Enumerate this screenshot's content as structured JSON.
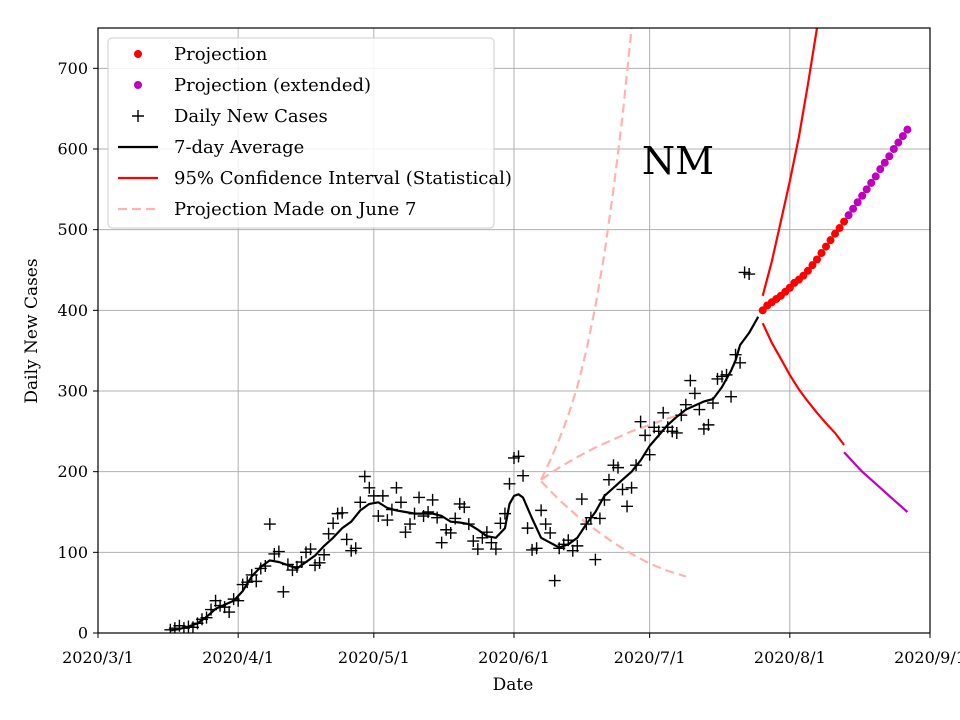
{
  "chart_data": {
    "type": "line",
    "region": "NM",
    "xlabel": "Date",
    "ylabel": "Daily New Cases",
    "xlim": [
      0,
      184
    ],
    "ylim": [
      0,
      750
    ],
    "grid": true,
    "legend_position": "top-left",
    "x_ticks": [
      {
        "x": 0,
        "label": "2020/3/1"
      },
      {
        "x": 31,
        "label": "2020/4/1"
      },
      {
        "x": 61,
        "label": "2020/5/1"
      },
      {
        "x": 92,
        "label": "2020/6/1"
      },
      {
        "x": 122,
        "label": "2020/7/1"
      },
      {
        "x": 153,
        "label": "2020/8/1"
      },
      {
        "x": 184,
        "label": "2020/9/1"
      }
    ],
    "y_ticks": [
      0,
      100,
      200,
      300,
      400,
      500,
      600,
      700
    ],
    "legend": [
      {
        "label": "Projection",
        "kind": "dot",
        "color": "#ff0000"
      },
      {
        "label": "Projection (extended)",
        "kind": "dot",
        "color": "#bf00bf"
      },
      {
        "label": "Daily New Cases",
        "kind": "plus",
        "color": "#000000"
      },
      {
        "label": "7-day Average",
        "kind": "line",
        "color": "#000000"
      },
      {
        "label": "95% Confidence Interval (Statistical)",
        "kind": "line",
        "color": "#ff0000"
      },
      {
        "label": "Projection Made on June 7",
        "kind": "dash",
        "color": "#ffb2b2"
      }
    ],
    "daily_new_cases": [
      [
        16,
        4
      ],
      [
        17,
        6
      ],
      [
        18,
        9
      ],
      [
        19,
        6
      ],
      [
        20,
        8
      ],
      [
        21,
        7
      ],
      [
        22,
        12
      ],
      [
        23,
        17
      ],
      [
        24,
        19
      ],
      [
        25,
        29
      ],
      [
        26,
        40
      ],
      [
        27,
        34
      ],
      [
        28,
        32
      ],
      [
        29,
        26
      ],
      [
        30,
        42
      ],
      [
        31,
        40
      ],
      [
        32,
        60
      ],
      [
        33,
        63
      ],
      [
        34,
        72
      ],
      [
        35,
        64
      ],
      [
        36,
        80
      ],
      [
        37,
        83
      ],
      [
        38,
        135
      ],
      [
        39,
        98
      ],
      [
        40,
        101
      ],
      [
        41,
        51
      ],
      [
        42,
        85
      ],
      [
        43,
        78
      ],
      [
        44,
        82
      ],
      [
        45,
        88
      ],
      [
        46,
        100
      ],
      [
        47,
        104
      ],
      [
        48,
        84
      ],
      [
        49,
        87
      ],
      [
        50,
        97
      ],
      [
        51,
        123
      ],
      [
        52,
        136
      ],
      [
        53,
        148
      ],
      [
        54,
        149
      ],
      [
        55,
        116
      ],
      [
        56,
        102
      ],
      [
        57,
        105
      ],
      [
        58,
        162
      ],
      [
        59,
        194
      ],
      [
        60,
        180
      ],
      [
        61,
        170
      ],
      [
        62,
        145
      ],
      [
        63,
        170
      ],
      [
        64,
        140
      ],
      [
        65,
        153
      ],
      [
        66,
        180
      ],
      [
        67,
        162
      ],
      [
        68,
        125
      ],
      [
        69,
        135
      ],
      [
        70,
        148
      ],
      [
        71,
        168
      ],
      [
        72,
        145
      ],
      [
        73,
        150
      ],
      [
        74,
        165
      ],
      [
        75,
        143
      ],
      [
        76,
        112
      ],
      [
        77,
        128
      ],
      [
        78,
        124
      ],
      [
        79,
        142
      ],
      [
        80,
        160
      ],
      [
        81,
        156
      ],
      [
        82,
        135
      ],
      [
        83,
        114
      ],
      [
        84,
        104
      ],
      [
        85,
        118
      ],
      [
        86,
        125
      ],
      [
        87,
        112
      ],
      [
        88,
        104
      ],
      [
        89,
        136
      ],
      [
        90,
        148
      ],
      [
        91,
        185
      ],
      [
        92,
        217
      ],
      [
        93,
        219
      ],
      [
        94,
        195
      ],
      [
        95,
        130
      ],
      [
        96,
        103
      ],
      [
        97,
        105
      ],
      [
        98,
        152
      ],
      [
        99,
        135
      ],
      [
        100,
        124
      ],
      [
        101,
        65
      ],
      [
        102,
        105
      ],
      [
        103,
        110
      ],
      [
        104,
        115
      ],
      [
        105,
        102
      ],
      [
        106,
        108
      ],
      [
        107,
        166
      ],
      [
        108,
        135
      ],
      [
        109,
        143
      ],
      [
        110,
        91
      ],
      [
        111,
        142
      ],
      [
        112,
        165
      ],
      [
        113,
        190
      ],
      [
        114,
        208
      ],
      [
        115,
        205
      ],
      [
        116,
        178
      ],
      [
        117,
        157
      ],
      [
        118,
        180
      ],
      [
        119,
        208
      ],
      [
        120,
        262
      ],
      [
        121,
        245
      ],
      [
        122,
        221
      ],
      [
        123,
        255
      ],
      [
        124,
        250
      ],
      [
        125,
        273
      ],
      [
        126,
        255
      ],
      [
        127,
        250
      ],
      [
        128,
        248
      ],
      [
        129,
        270
      ],
      [
        130,
        283
      ],
      [
        131,
        313
      ],
      [
        132,
        297
      ],
      [
        133,
        277
      ],
      [
        134,
        253
      ],
      [
        135,
        258
      ],
      [
        136,
        285
      ],
      [
        137,
        315
      ],
      [
        138,
        318
      ],
      [
        139,
        320
      ],
      [
        140,
        293
      ],
      [
        141,
        345
      ],
      [
        142,
        335
      ],
      [
        143,
        447
      ],
      [
        144,
        445
      ]
    ],
    "seven_day_average": [
      [
        16,
        3
      ],
      [
        18,
        5
      ],
      [
        20,
        8
      ],
      [
        22,
        12
      ],
      [
        24,
        20
      ],
      [
        26,
        30
      ],
      [
        28,
        35
      ],
      [
        30,
        40
      ],
      [
        32,
        52
      ],
      [
        34,
        70
      ],
      [
        36,
        82
      ],
      [
        38,
        90
      ],
      [
        40,
        88
      ],
      [
        42,
        84
      ],
      [
        44,
        80
      ],
      [
        46,
        88
      ],
      [
        48,
        96
      ],
      [
        50,
        108
      ],
      [
        52,
        118
      ],
      [
        54,
        130
      ],
      [
        56,
        138
      ],
      [
        58,
        152
      ],
      [
        60,
        160
      ],
      [
        62,
        162
      ],
      [
        64,
        155
      ],
      [
        66,
        152
      ],
      [
        68,
        150
      ],
      [
        70,
        148
      ],
      [
        72,
        148
      ],
      [
        74,
        148
      ],
      [
        76,
        145
      ],
      [
        78,
        138
      ],
      [
        80,
        137
      ],
      [
        82,
        135
      ],
      [
        84,
        128
      ],
      [
        86,
        120
      ],
      [
        88,
        118
      ],
      [
        90,
        130
      ],
      [
        91,
        160
      ],
      [
        92,
        170
      ],
      [
        93,
        172
      ],
      [
        94,
        168
      ],
      [
        96,
        142
      ],
      [
        98,
        118
      ],
      [
        100,
        112
      ],
      [
        102,
        106
      ],
      [
        104,
        110
      ],
      [
        106,
        118
      ],
      [
        108,
        135
      ],
      [
        110,
        150
      ],
      [
        112,
        170
      ],
      [
        114,
        180
      ],
      [
        116,
        190
      ],
      [
        118,
        200
      ],
      [
        120,
        214
      ],
      [
        122,
        232
      ],
      [
        124,
        245
      ],
      [
        126,
        258
      ],
      [
        128,
        268
      ],
      [
        130,
        277
      ],
      [
        132,
        282
      ],
      [
        134,
        287
      ],
      [
        136,
        290
      ],
      [
        138,
        305
      ],
      [
        140,
        325
      ],
      [
        141,
        338
      ],
      [
        142,
        357
      ],
      [
        144,
        372
      ],
      [
        146,
        392
      ]
    ],
    "projection": [
      [
        147,
        400
      ],
      [
        148,
        406
      ],
      [
        149,
        410
      ],
      [
        150,
        414
      ],
      [
        151,
        418
      ],
      [
        152,
        423
      ],
      [
        153,
        428
      ],
      [
        154,
        434
      ],
      [
        155,
        438
      ],
      [
        156,
        443
      ],
      [
        157,
        449
      ],
      [
        158,
        456
      ],
      [
        159,
        463
      ],
      [
        160,
        471
      ],
      [
        161,
        479
      ],
      [
        162,
        487
      ],
      [
        163,
        495
      ],
      [
        164,
        502
      ],
      [
        165,
        510
      ]
    ],
    "projection_extended": [
      [
        166,
        518
      ],
      [
        167,
        526
      ],
      [
        168,
        534
      ],
      [
        169,
        542
      ],
      [
        170,
        550
      ],
      [
        171,
        558
      ],
      [
        172,
        566
      ],
      [
        173,
        575
      ],
      [
        174,
        583
      ],
      [
        175,
        591
      ],
      [
        176,
        600
      ],
      [
        177,
        608
      ],
      [
        178,
        616
      ],
      [
        179,
        624
      ]
    ],
    "confidence_interval_upper": [
      [
        147,
        418
      ],
      [
        149,
        460
      ],
      [
        151,
        510
      ],
      [
        153,
        560
      ],
      [
        155,
        615
      ],
      [
        157,
        680
      ],
      [
        159,
        750
      ]
    ],
    "confidence_interval_lower": [
      [
        147,
        384
      ],
      [
        149,
        360
      ],
      [
        151,
        340
      ],
      [
        153,
        320
      ],
      [
        155,
        302
      ],
      [
        157,
        287
      ],
      [
        159,
        273
      ],
      [
        161,
        260
      ],
      [
        163,
        248
      ],
      [
        165,
        233
      ]
    ],
    "confidence_interval_lower_extended": [
      [
        165,
        224
      ],
      [
        167,
        212
      ],
      [
        169,
        200
      ],
      [
        171,
        190
      ],
      [
        173,
        180
      ],
      [
        175,
        170
      ],
      [
        177,
        160
      ],
      [
        179,
        150
      ]
    ],
    "june7_projection": {
      "upper": [
        [
          98,
          190
        ],
        [
          100,
          214
        ],
        [
          102,
          240
        ],
        [
          104,
          270
        ],
        [
          106,
          305
        ],
        [
          108,
          350
        ],
        [
          110,
          405
        ],
        [
          112,
          470
        ],
        [
          114,
          550
        ],
        [
          116,
          640
        ],
        [
          118,
          750
        ]
      ],
      "middle": [
        [
          98,
          190
        ],
        [
          102,
          205
        ],
        [
          106,
          218
        ],
        [
          110,
          230
        ],
        [
          114,
          240
        ],
        [
          118,
          250
        ],
        [
          122,
          258
        ],
        [
          126,
          266
        ],
        [
          130,
          272
        ]
      ],
      "lower": [
        [
          98,
          188
        ],
        [
          102,
          165
        ],
        [
          106,
          145
        ],
        [
          110,
          128
        ],
        [
          114,
          112
        ],
        [
          118,
          98
        ],
        [
          122,
          86
        ],
        [
          126,
          77
        ],
        [
          130,
          70
        ]
      ]
    }
  }
}
